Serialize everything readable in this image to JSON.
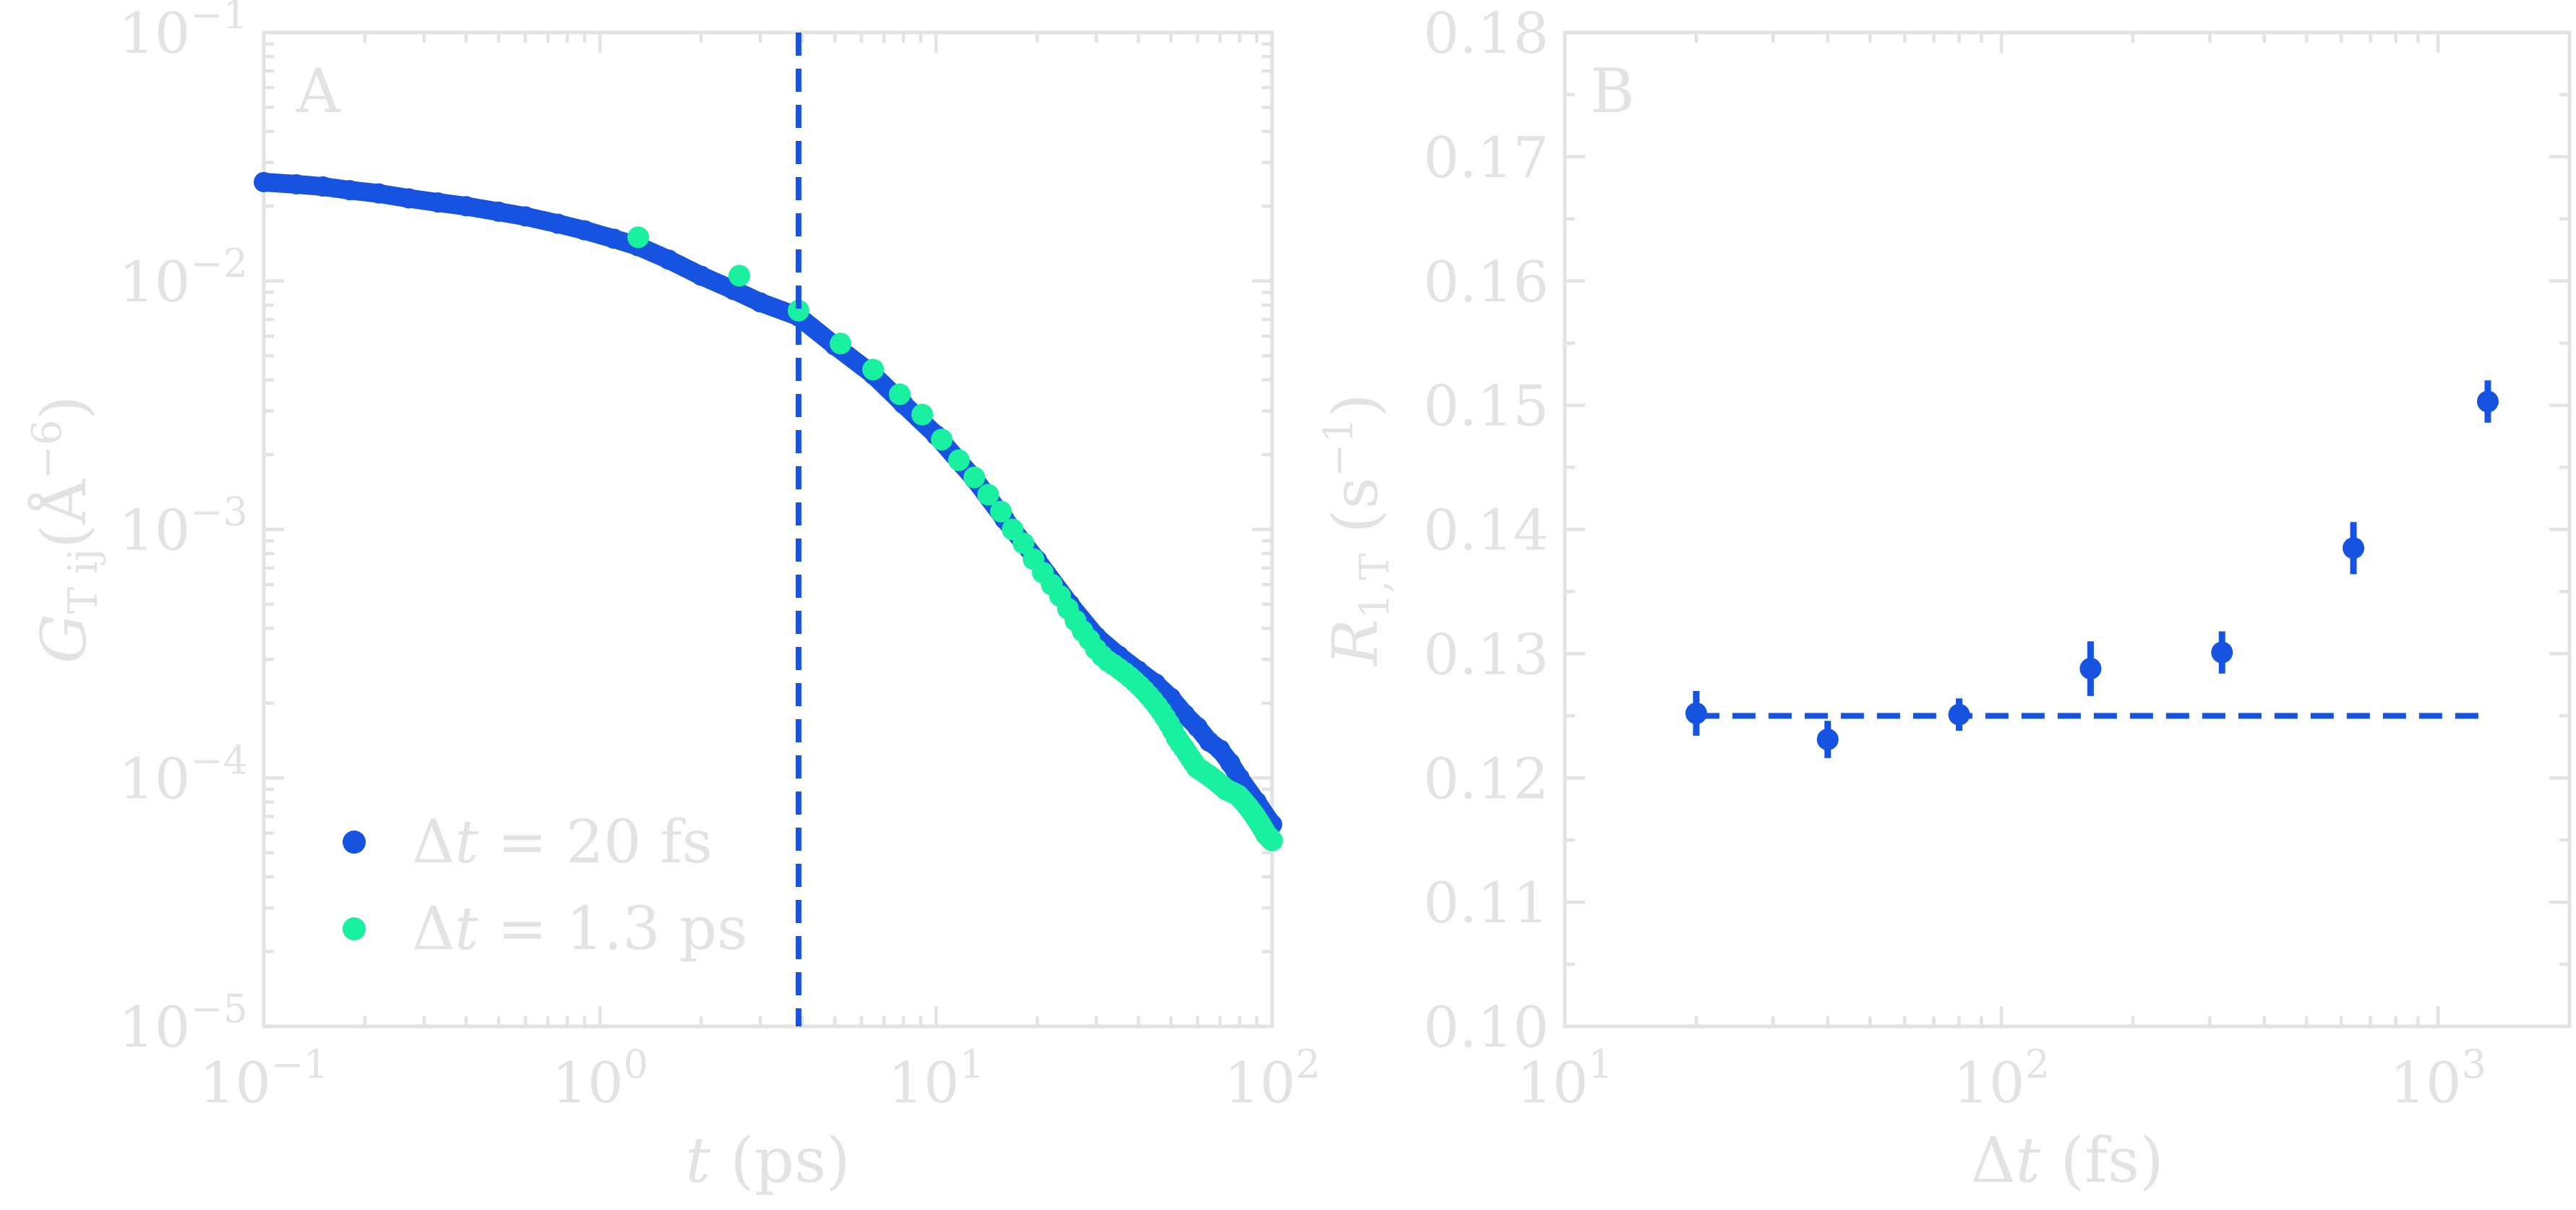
{
  "colors": {
    "frame": "#e3e3e3",
    "text": "#e3e3e3",
    "series_fine": "#1553e0",
    "series_coarse": "#19f0a0",
    "background": "#ffffff"
  },
  "chart_data": [
    {
      "panel": "A",
      "type": "scatter",
      "xscale": "log",
      "yscale": "log",
      "xlim": [
        0.1,
        100
      ],
      "ylim": [
        1e-05,
        0.1
      ],
      "xlabel_base": "t",
      "xlabel_unit": "(ps)",
      "ylabel_base": "G",
      "ylabel_sub": "T ij",
      "ylabel_unit": "(Å",
      "ylabel_exp": "−6",
      "ylabel_close": ")",
      "xticks": [
        {
          "base": "10",
          "exp": "−1",
          "value": 0.1
        },
        {
          "base": "10",
          "exp": "0",
          "value": 1
        },
        {
          "base": "10",
          "exp": "1",
          "value": 10
        },
        {
          "base": "10",
          "exp": "2",
          "value": 100
        }
      ],
      "yticks": [
        {
          "base": "10",
          "exp": "−1",
          "value": 0.1
        },
        {
          "base": "10",
          "exp": "−2",
          "value": 0.01
        },
        {
          "base": "10",
          "exp": "−3",
          "value": 0.001
        },
        {
          "base": "10",
          "exp": "−4",
          "value": 0.0001
        },
        {
          "base": "10",
          "exp": "−5",
          "value": 1e-05
        }
      ],
      "vline_x": 3.9,
      "legend_position": "lower-left",
      "series": [
        {
          "name": "Δt = 20 fs",
          "legend_var": "Δt",
          "legend_value": " = 20 fs",
          "x": [
            0.1,
            0.125,
            0.15,
            0.18,
            0.22,
            0.27,
            0.33,
            0.4,
            0.5,
            0.6,
            0.75,
            0.9,
            1.1,
            1.3,
            1.6,
            2.0,
            2.5,
            3.0,
            3.9,
            5.0,
            6.5,
            8.0,
            10,
            13,
            16,
            20,
            25,
            30,
            35,
            40,
            45,
            50,
            55,
            60,
            65,
            70,
            75,
            80,
            90,
            100
          ],
          "y": [
            0.025,
            0.0245,
            0.024,
            0.0232,
            0.0225,
            0.0215,
            0.0207,
            0.02,
            0.019,
            0.0182,
            0.017,
            0.016,
            0.0148,
            0.0138,
            0.0122,
            0.0105,
            0.0092,
            0.0082,
            0.0072,
            0.0055,
            0.0042,
            0.0032,
            0.0024,
            0.0016,
            0.0011,
            0.00075,
            0.0005,
            0.00037,
            0.00031,
            0.00027,
            0.00024,
            0.00021,
            0.00018,
            0.00016,
            0.00014,
            0.00013,
            0.000115,
            0.0001,
            8e-05,
            6.5e-05
          ]
        },
        {
          "name": "Δt = 1.3 ps",
          "legend_var": "Δt",
          "legend_value": " = 1.3 ps",
          "x": [
            1.3,
            2.6,
            3.9,
            5.2,
            6.5,
            7.8,
            9.1,
            10.4,
            11.7,
            13,
            14.3,
            15.6,
            16.9,
            18.2,
            19.5,
            20.8,
            22.1,
            23.4,
            24.7,
            26,
            27.3,
            28.6,
            29.9,
            31.2,
            32.5,
            33.8,
            35.1,
            36.4,
            37.7,
            39,
            40.3,
            41.6,
            42.9,
            44.2,
            45.5,
            46.8,
            48.1,
            49.4,
            50.7,
            52,
            53.3,
            54.6,
            55.9,
            57.2,
            58.5,
            59.8,
            61.1,
            62.4,
            63.7,
            65,
            66.3,
            67.6,
            68.9,
            70.2,
            71.5,
            72.8,
            74.1,
            75.4,
            76.7,
            78,
            79.3,
            80.6,
            81.9,
            83.2,
            84.5,
            85.8,
            87.1,
            88.4,
            89.7,
            91,
            92.3,
            93.6,
            94.9,
            96.2,
            97.5,
            98.8,
            100
          ],
          "y": [
            0.015,
            0.0105,
            0.0076,
            0.0056,
            0.0044,
            0.0035,
            0.0029,
            0.0023,
            0.0019,
            0.00162,
            0.00138,
            0.00118,
            0.001,
            0.00088,
            0.00076,
            0.00067,
            0.0006,
            0.00054,
            0.00048,
            0.00043,
            0.00039,
            0.00036,
            0.00033,
            0.00031,
            0.000295,
            0.000285,
            0.000275,
            0.000265,
            0.000255,
            0.000245,
            0.000235,
            0.000225,
            0.000215,
            0.000205,
            0.000195,
            0.000185,
            0.000175,
            0.000165,
            0.000155,
            0.000145,
            0.000138,
            0.000132,
            0.000126,
            0.00012,
            0.000115,
            0.00011,
            0.000108,
            0.000106,
            0.000104,
            0.000102,
            0.0001,
            9.8e-05,
            9.6e-05,
            9.4e-05,
            9.2e-05,
            9e-05,
            8.9e-05,
            8.8e-05,
            8.7e-05,
            8.6e-05,
            8.5e-05,
            8.3e-05,
            8.1e-05,
            7.9e-05,
            7.7e-05,
            7.5e-05,
            7.3e-05,
            7.1e-05,
            6.9e-05,
            6.7e-05,
            6.5e-05,
            6.3e-05,
            6.1e-05,
            5.9e-05,
            5.8e-05,
            5.7e-05,
            5.6e-05
          ]
        }
      ]
    },
    {
      "panel": "B",
      "type": "scatter",
      "xscale": "log",
      "yscale": "linear",
      "xlim": [
        10,
        2000
      ],
      "ylim": [
        0.1,
        0.18
      ],
      "xlabel_var": "Δt",
      "xlabel_unit": " (fs)",
      "ylabel_base": "R",
      "ylabel_sub": "1,T",
      "ylabel_unit": "(s",
      "ylabel_exp": "−1",
      "ylabel_close": ")",
      "xticks": [
        {
          "base": "10",
          "exp": "1",
          "value": 10
        },
        {
          "base": "10",
          "exp": "2",
          "value": 100
        },
        {
          "base": "10",
          "exp": "3",
          "value": 1000
        }
      ],
      "yticks": [
        "0.10",
        "0.11",
        "0.12",
        "0.13",
        "0.14",
        "0.15",
        "0.16",
        "0.17",
        "0.18"
      ],
      "hline": {
        "y": 0.125,
        "x_start": 20,
        "x_end": 1300
      },
      "series": [
        {
          "x": [
            20,
            40,
            80,
            160,
            320,
            640,
            1300
          ],
          "y": [
            0.1252,
            0.1231,
            0.1251,
            0.1288,
            0.1301,
            0.1385,
            0.1503
          ],
          "err": [
            0.0018,
            0.0015,
            0.0013,
            0.0022,
            0.0017,
            0.0021,
            0.0017
          ]
        }
      ]
    }
  ]
}
